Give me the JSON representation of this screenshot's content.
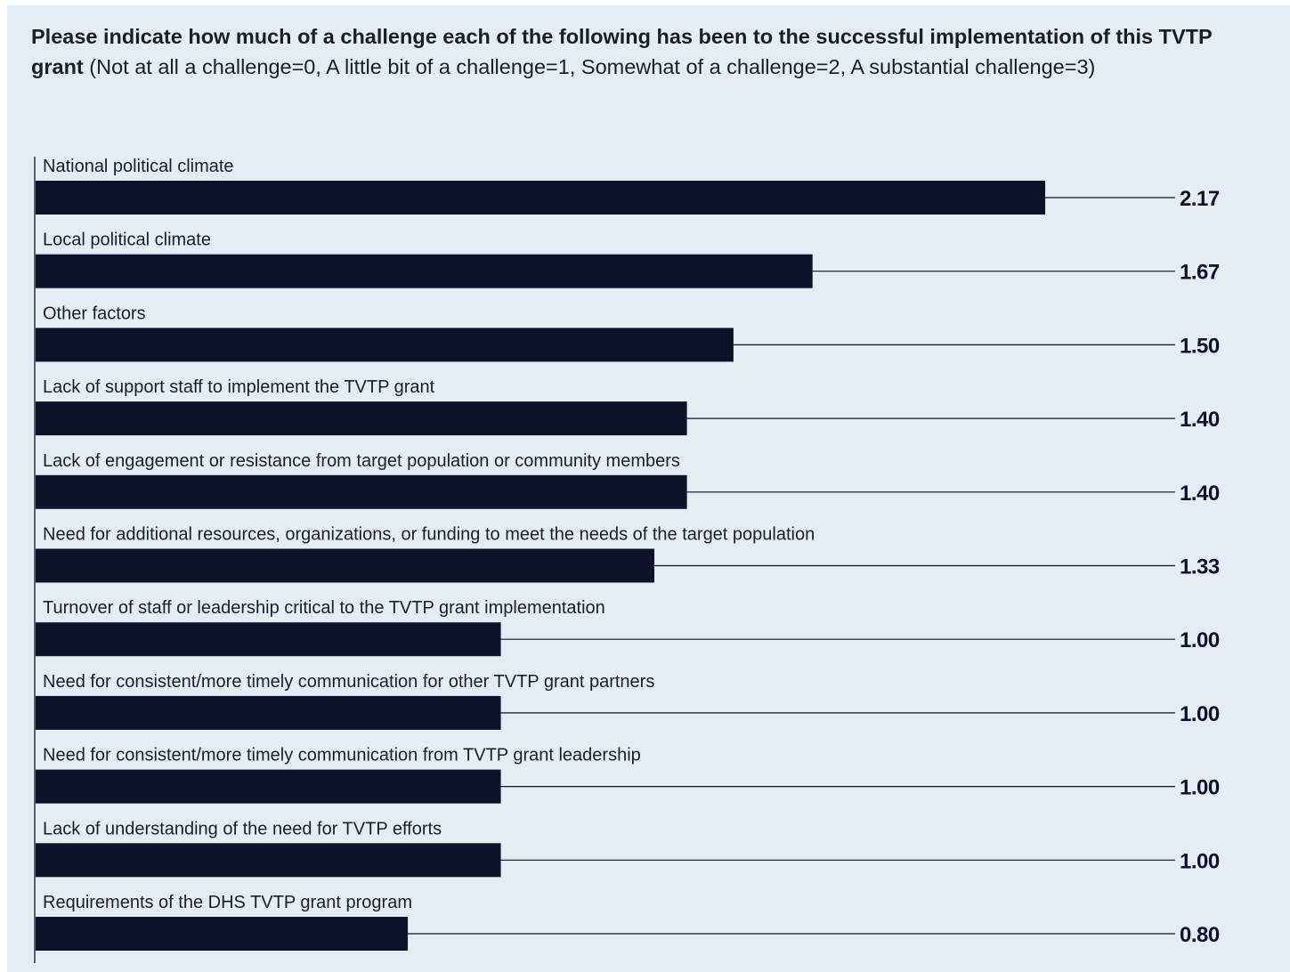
{
  "title": {
    "bold": "Please indicate how much of a challenge each of the following has been to the successful implementation of this TVTP grant",
    "normal": " (Not at all a challenge=0, A little bit of a challenge=1, Somewhat of a challenge=2, A substantial challenge=3)"
  },
  "colors": {
    "background": "#e4edf6",
    "bar": "#0b132b",
    "leader_line": "#0b132b",
    "text": "#15202e"
  },
  "chart_data": {
    "type": "bar",
    "orientation": "horizontal",
    "categories": [
      "National political climate",
      "Local political climate",
      "Other factors",
      "Lack of support staff to implement the TVTP grant",
      "Lack of engagement or resistance from target population or community members",
      "Need for additional resources, organizations, or funding to meet the needs of the target population",
      "Turnover of staff or leadership critical to the TVTP grant implementation",
      "Need for consistent/more timely communication for other TVTP grant partners",
      "Need for consistent/more timely communication from TVTP grant leadership",
      "Lack of understanding of the need for TVTP efforts",
      "Requirements of the DHS TVTP grant program"
    ],
    "values": [
      2.17,
      1.67,
      1.5,
      1.4,
      1.4,
      1.33,
      1.0,
      1.0,
      1.0,
      1.0,
      0.8
    ],
    "value_labels": [
      "2.17",
      "1.67",
      "1.50",
      "1.40",
      "1.40",
      "1.33",
      "1.00",
      "1.00",
      "1.00",
      "1.00",
      "0.80"
    ],
    "xlim": [
      0,
      3
    ],
    "grid": false,
    "legend": "none"
  }
}
